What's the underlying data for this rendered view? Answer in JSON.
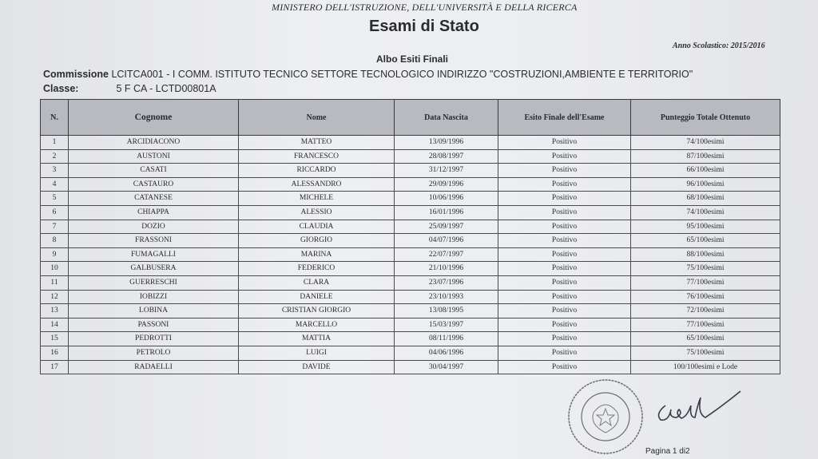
{
  "header": {
    "ministry": "MINISTERO DELL'ISTRUZIONE, DELL'UNIVERSITÀ E DELLA RICERCA",
    "title": "Esami di Stato",
    "school_year": "Anno Scolastico: 2015/2016",
    "subtitle": "Albo Esiti Finali",
    "commission_label": "Commissione",
    "commission_value": "LCITCA001 - I COMM.  ISTITUTO TECNICO SETTORE TECNOLOGICO  INDIRIZZO \"COSTRUZIONI,AMBIENTE E TERRITORIO\"",
    "class_label": "Classe:",
    "class_value": "5 F CA - LCTD00801A"
  },
  "table": {
    "columns": [
      "N.",
      "Cognome",
      "Nome",
      "Data Nascita",
      "Esito Finale dell'Esame",
      "Punteggio Totale Ottenuto"
    ],
    "rows": [
      [
        "1",
        "ARCIDIACONO",
        "MATTEO",
        "13/09/1996",
        "Positivo",
        "74/100esimi"
      ],
      [
        "2",
        "AUSTONI",
        "FRANCESCO",
        "28/08/1997",
        "Positivo",
        "87/100esimi"
      ],
      [
        "3",
        "CASATI",
        "RICCARDO",
        "31/12/1997",
        "Positivo",
        "66/100esimi"
      ],
      [
        "4",
        "CASTAURO",
        "ALESSANDRO",
        "29/09/1996",
        "Positivo",
        "96/100esimi"
      ],
      [
        "5",
        "CATANESE",
        "MICHELE",
        "10/06/1996",
        "Positivo",
        "68/100esimi"
      ],
      [
        "6",
        "CHIAPPA",
        "ALESSIO",
        "16/01/1996",
        "Positivo",
        "74/100esimi"
      ],
      [
        "7",
        "DOZIO",
        "CLAUDIA",
        "25/09/1997",
        "Positivo",
        "95/100esimi"
      ],
      [
        "8",
        "FRASSONI",
        "GIORGIO",
        "04/07/1996",
        "Positivo",
        "65/100esimi"
      ],
      [
        "9",
        "FUMAGALLI",
        "MARINA",
        "22/07/1997",
        "Positivo",
        "88/100esimi"
      ],
      [
        "10",
        "GALBUSERA",
        "FEDERICO",
        "21/10/1996",
        "Positivo",
        "75/100esimi"
      ],
      [
        "11",
        "GUERRESCHI",
        "CLARA",
        "23/07/1996",
        "Positivo",
        "77/100esimi"
      ],
      [
        "12",
        "IOBIZZI",
        "DANIELE",
        "23/10/1993",
        "Positivo",
        "76/100esimi"
      ],
      [
        "13",
        "LOBINA",
        "CRISTIAN GIORGIO",
        "13/08/1995",
        "Positivo",
        "72/100esimi"
      ],
      [
        "14",
        "PASSONI",
        "MARCELLO",
        "15/03/1997",
        "Positivo",
        "77/100esimi"
      ],
      [
        "15",
        "PEDROTTI",
        "MATTIA",
        "08/11/1996",
        "Positivo",
        "65/100esimi"
      ],
      [
        "16",
        "PETROLO",
        "LUIGI",
        "04/06/1996",
        "Positivo",
        "75/100esimi"
      ],
      [
        "17",
        "RADAELLI",
        "DAVIDE",
        "30/04/1997",
        "Positivo",
        "100/100esimi e Lode"
      ]
    ]
  },
  "footer": {
    "page": "Pagina 1 di2",
    "stamp_icon": "official-seal-icon",
    "signature_icon": "handwritten-signature-icon"
  },
  "colors": {
    "header_fill": "#b9babf",
    "paper": "#eceef0",
    "ink": "#2a2b30"
  }
}
